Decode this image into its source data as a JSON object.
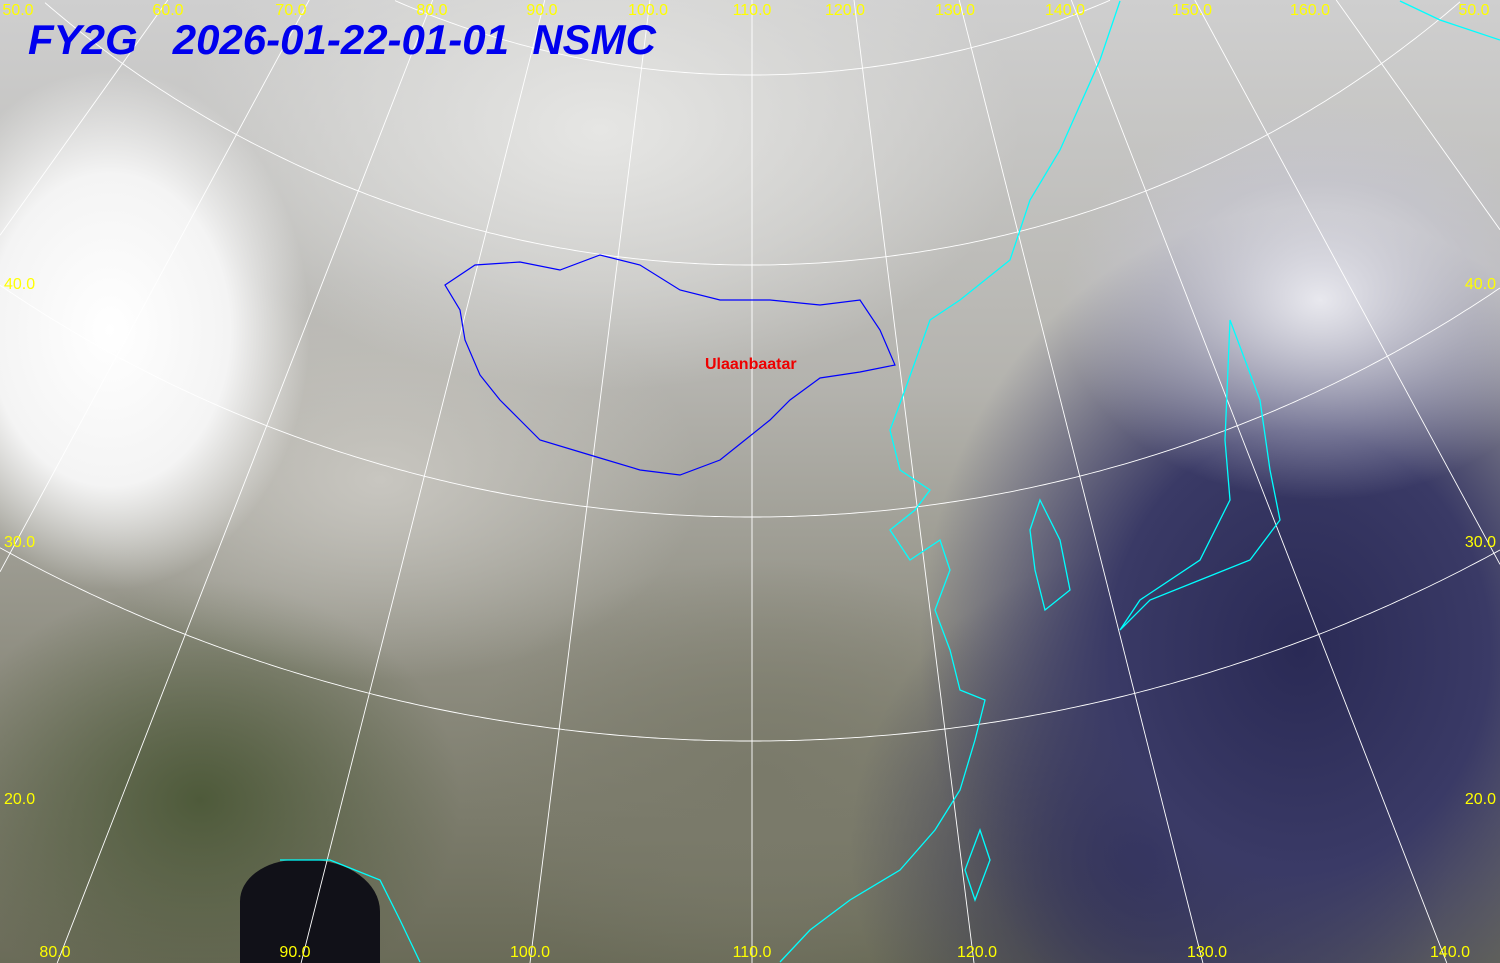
{
  "header": {
    "satellite": "FY2G",
    "datetime": "2026-01-22-01-01",
    "agency": "NSMC"
  },
  "colors": {
    "title": "#0000ee",
    "grid_labels": "#ffff00",
    "coastline": "#00ffff",
    "mongolia_border": "#0000ff",
    "city": "#ee0000",
    "graticule": "#ffffff"
  },
  "top_longitude_labels": [
    "50.0",
    "60.0",
    "70.0",
    "80.0",
    "90.0",
    "100.0",
    "110.0",
    "120.0",
    "130.0",
    "140.0",
    "150.0",
    "160.0",
    "50.0"
  ],
  "bottom_longitude_labels": [
    "80.0",
    "90.0",
    "100.0",
    "110.0",
    "120.0",
    "130.0",
    "140.0"
  ],
  "left_latitude_labels": [
    "40.0",
    "30.0",
    "20.0"
  ],
  "right_latitude_labels": [
    "40.0",
    "30.0",
    "20.0"
  ],
  "city_label": "Ulaanbaatar"
}
